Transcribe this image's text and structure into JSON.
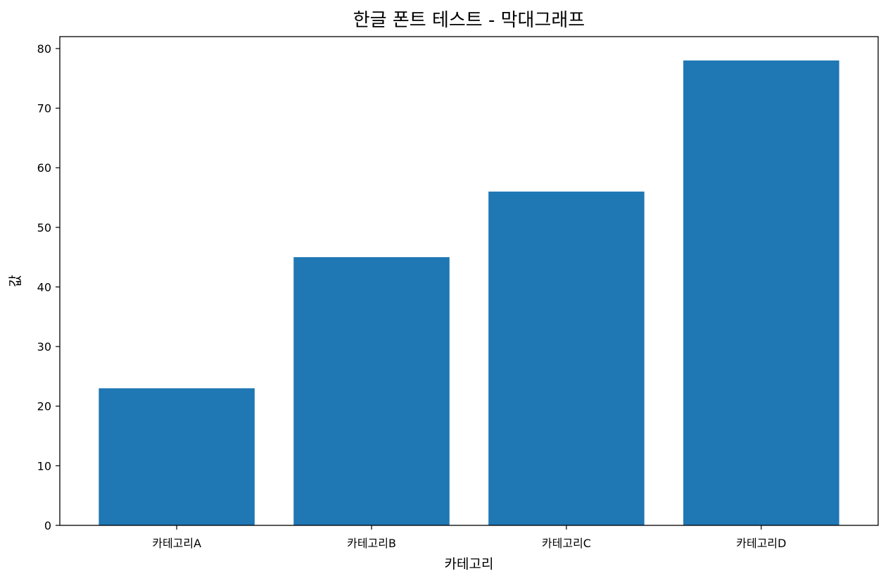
{
  "chart_data": {
    "type": "bar",
    "title": "한글 폰트 테스트 - 막대그래프",
    "xlabel": "카테고리",
    "ylabel": "값",
    "categories": [
      "카테고리A",
      "카테고리B",
      "카테고리C",
      "카테고리D"
    ],
    "values": [
      23,
      45,
      56,
      78
    ],
    "ylim": [
      0,
      82
    ],
    "yticks": [
      0,
      10,
      20,
      30,
      40,
      50,
      60,
      70,
      80
    ],
    "bar_color": "#1f77b4",
    "grid": false,
    "legend": null
  }
}
